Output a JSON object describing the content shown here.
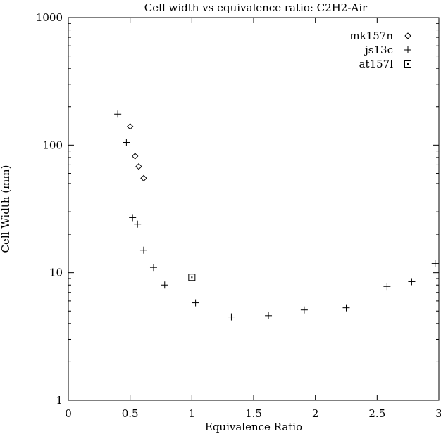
{
  "chart_data": {
    "type": "scatter",
    "title": "Cell width vs equivalence ratio: C2H2-Air",
    "xlabel": "Equivalence Ratio",
    "ylabel": "Cell Width (mm)",
    "xlim": [
      0,
      3
    ],
    "ylim": [
      1,
      1000
    ],
    "yscale": "log",
    "x_ticks": [
      0,
      0.5,
      1,
      1.5,
      2,
      2.5,
      3
    ],
    "x_tick_labels": [
      "0",
      "0.5",
      "1",
      "1.5",
      "2",
      "2.5",
      "3"
    ],
    "y_ticks": [
      1,
      10,
      100,
      1000
    ],
    "y_tick_labels": [
      "1",
      "10",
      "100",
      "1000"
    ],
    "grid": false,
    "legend_position": "top-right",
    "series": [
      {
        "name": "mk157n",
        "marker": "diamond",
        "x": [
          0.5,
          0.54,
          0.57,
          0.61
        ],
        "y": [
          140,
          82,
          68,
          55
        ]
      },
      {
        "name": "js13c",
        "marker": "plus",
        "x": [
          0.4,
          0.47,
          0.52,
          0.56,
          0.61,
          0.69,
          0.78,
          1.03,
          1.32,
          1.62,
          1.91,
          2.25,
          2.58,
          2.78,
          2.97
        ],
        "y": [
          175,
          105,
          27,
          24,
          15,
          11,
          8,
          5.8,
          4.5,
          4.6,
          5.1,
          5.3,
          7.8,
          8.5,
          11.8
        ]
      },
      {
        "name": "at157l",
        "marker": "square",
        "x": [
          1.0
        ],
        "y": [
          9.2
        ]
      }
    ]
  }
}
